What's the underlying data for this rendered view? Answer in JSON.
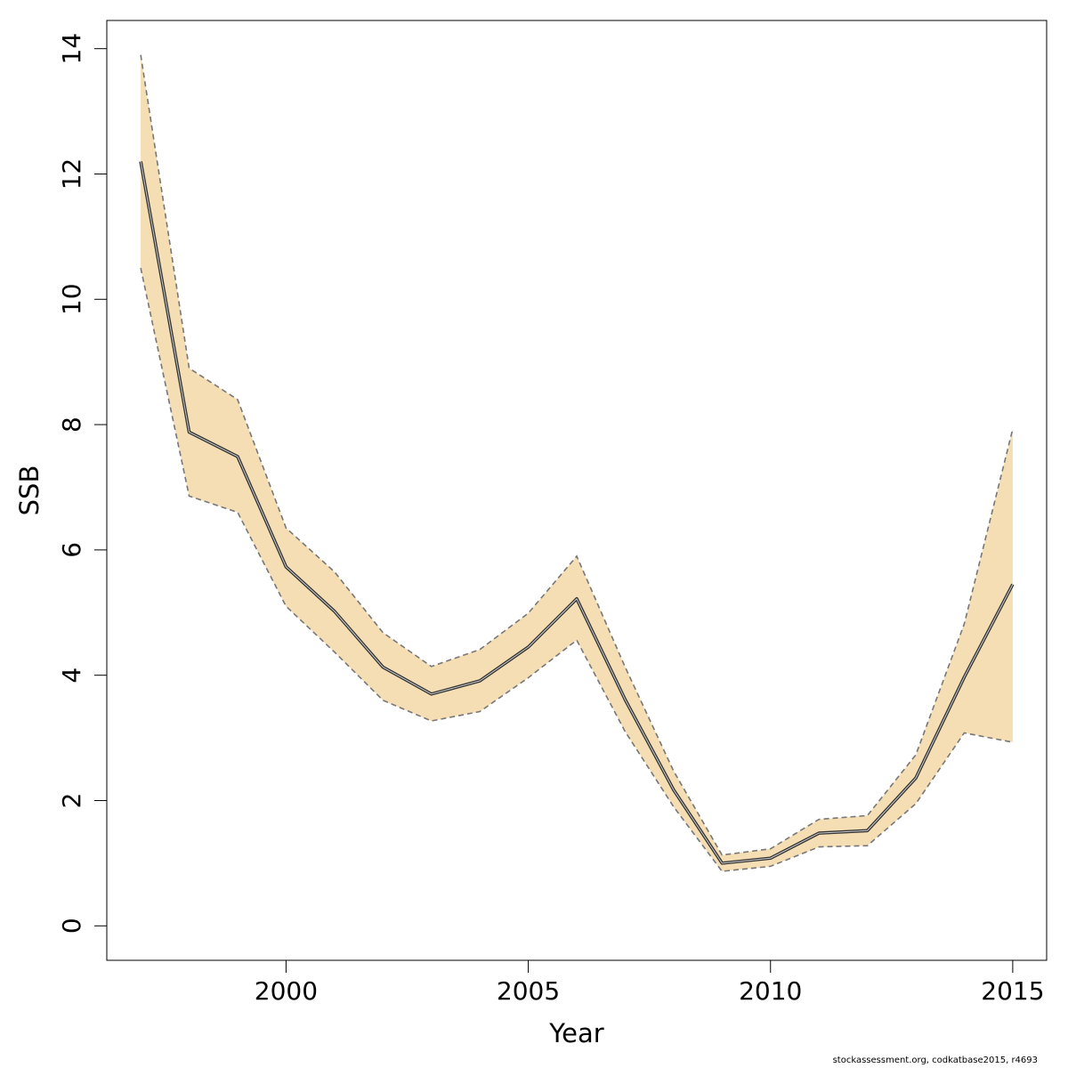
{
  "chart_data": {
    "type": "line",
    "title": "",
    "xlabel": "Year",
    "ylabel": "SSB",
    "x": [
      1997,
      1998,
      1999,
      2000,
      2001,
      2002,
      2003,
      2004,
      2005,
      2006,
      2007,
      2008,
      2009,
      2010,
      2011,
      2012,
      2013,
      2014,
      2015
    ],
    "series": [
      {
        "role": "estimate",
        "values": [
          12.2,
          7.88,
          7.49,
          5.73,
          5.02,
          4.13,
          3.7,
          3.91,
          4.45,
          5.22,
          3.61,
          2.17,
          1.0,
          1.08,
          1.48,
          1.52,
          2.36,
          3.97,
          5.45
        ]
      },
      {
        "role": "upper",
        "values": [
          13.9,
          8.9,
          8.4,
          6.35,
          5.65,
          4.68,
          4.14,
          4.41,
          4.99,
          5.9,
          4.13,
          2.47,
          1.13,
          1.23,
          1.7,
          1.76,
          2.73,
          4.82,
          7.93
        ]
      },
      {
        "role": "lower",
        "values": [
          10.5,
          6.86,
          6.6,
          5.1,
          4.37,
          3.6,
          3.27,
          3.42,
          3.96,
          4.56,
          3.1,
          1.9,
          0.87,
          0.95,
          1.26,
          1.28,
          1.95,
          3.08,
          2.93
        ]
      }
    ],
    "xticks": [
      2000,
      2005,
      2010,
      2015
    ],
    "yticks": [
      0,
      2,
      4,
      6,
      8,
      10,
      12,
      14
    ],
    "xlim": [
      1996.3,
      2015.7
    ],
    "ylim": [
      -0.55,
      14.45
    ],
    "grid": false,
    "legend": "none",
    "colors": {
      "band": "#f5deb3",
      "bound_line": "#777777",
      "estimate_line": "#000000",
      "frame": "#000000"
    }
  },
  "footnote": "stockassessment.org, codkatbase2015, r4693"
}
